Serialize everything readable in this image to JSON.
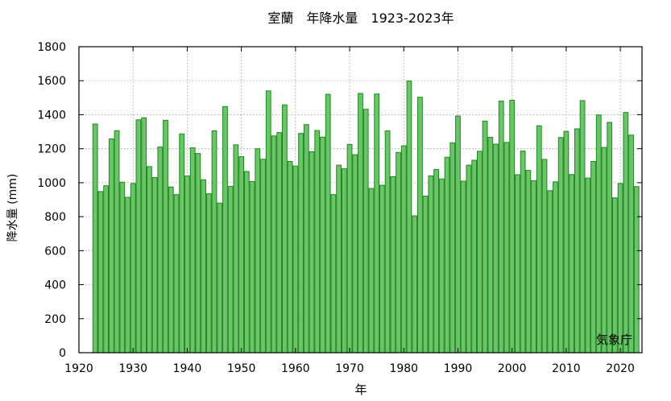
{
  "chart_data": {
    "type": "bar",
    "title": "室蘭　年降水量　1923-2023年",
    "xlabel": "年",
    "ylabel": "降水量 (mm)",
    "source_label": "気象庁",
    "x": [
      1923,
      1924,
      1925,
      1926,
      1927,
      1928,
      1929,
      1930,
      1931,
      1932,
      1933,
      1934,
      1935,
      1936,
      1937,
      1938,
      1939,
      1940,
      1941,
      1942,
      1943,
      1944,
      1945,
      1946,
      1947,
      1948,
      1949,
      1950,
      1951,
      1952,
      1953,
      1954,
      1955,
      1956,
      1957,
      1958,
      1959,
      1960,
      1961,
      1962,
      1963,
      1964,
      1965,
      1966,
      1967,
      1968,
      1969,
      1970,
      1971,
      1972,
      1973,
      1974,
      1975,
      1976,
      1977,
      1978,
      1979,
      1980,
      1981,
      1982,
      1983,
      1984,
      1985,
      1986,
      1987,
      1988,
      1989,
      1990,
      1991,
      1992,
      1993,
      1994,
      1995,
      1996,
      1997,
      1998,
      1999,
      2000,
      2001,
      2002,
      2003,
      2004,
      2005,
      2006,
      2007,
      2008,
      2009,
      2010,
      2011,
      2012,
      2013,
      2014,
      2015,
      2016,
      2017,
      2018,
      2019,
      2020,
      2021,
      2022,
      2023
    ],
    "values": [
      1345,
      948,
      982,
      1258,
      1306,
      1003,
      914,
      995,
      1370,
      1382,
      1095,
      1030,
      1210,
      1367,
      975,
      930,
      1287,
      1040,
      1205,
      1172,
      1017,
      935,
      1305,
      880,
      1448,
      978,
      1223,
      1153,
      1066,
      1007,
      1200,
      1138,
      1540,
      1275,
      1295,
      1458,
      1125,
      1098,
      1290,
      1342,
      1182,
      1307,
      1268,
      1520,
      930,
      1103,
      1082,
      1225,
      1165,
      1525,
      1432,
      966,
      1522,
      985,
      1305,
      1035,
      1178,
      1217,
      1598,
      805,
      1503,
      921,
      1040,
      1078,
      1022,
      1150,
      1235,
      1392,
      1009,
      1103,
      1132,
      1185,
      1362,
      1267,
      1227,
      1480,
      1237,
      1485,
      1047,
      1186,
      1072,
      1012,
      1335,
      1137,
      953,
      1005,
      1266,
      1302,
      1048,
      1317,
      1483,
      1027,
      1125,
      1398,
      1207,
      1355,
      911,
      995,
      1413,
      1280,
      977
    ],
    "xlim": [
      1920,
      2024
    ],
    "ylim": [
      0,
      1800
    ],
    "xticks": [
      1920,
      1930,
      1940,
      1950,
      1960,
      1970,
      1980,
      1990,
      2000,
      2010,
      2020
    ],
    "yticks": [
      0,
      200,
      400,
      600,
      800,
      1000,
      1200,
      1400,
      1600,
      1800
    ],
    "grid": true,
    "colors": {
      "bar_fill": "#6cc46a",
      "bar_stroke": "#1e8a1e",
      "grid": "#999999"
    }
  }
}
